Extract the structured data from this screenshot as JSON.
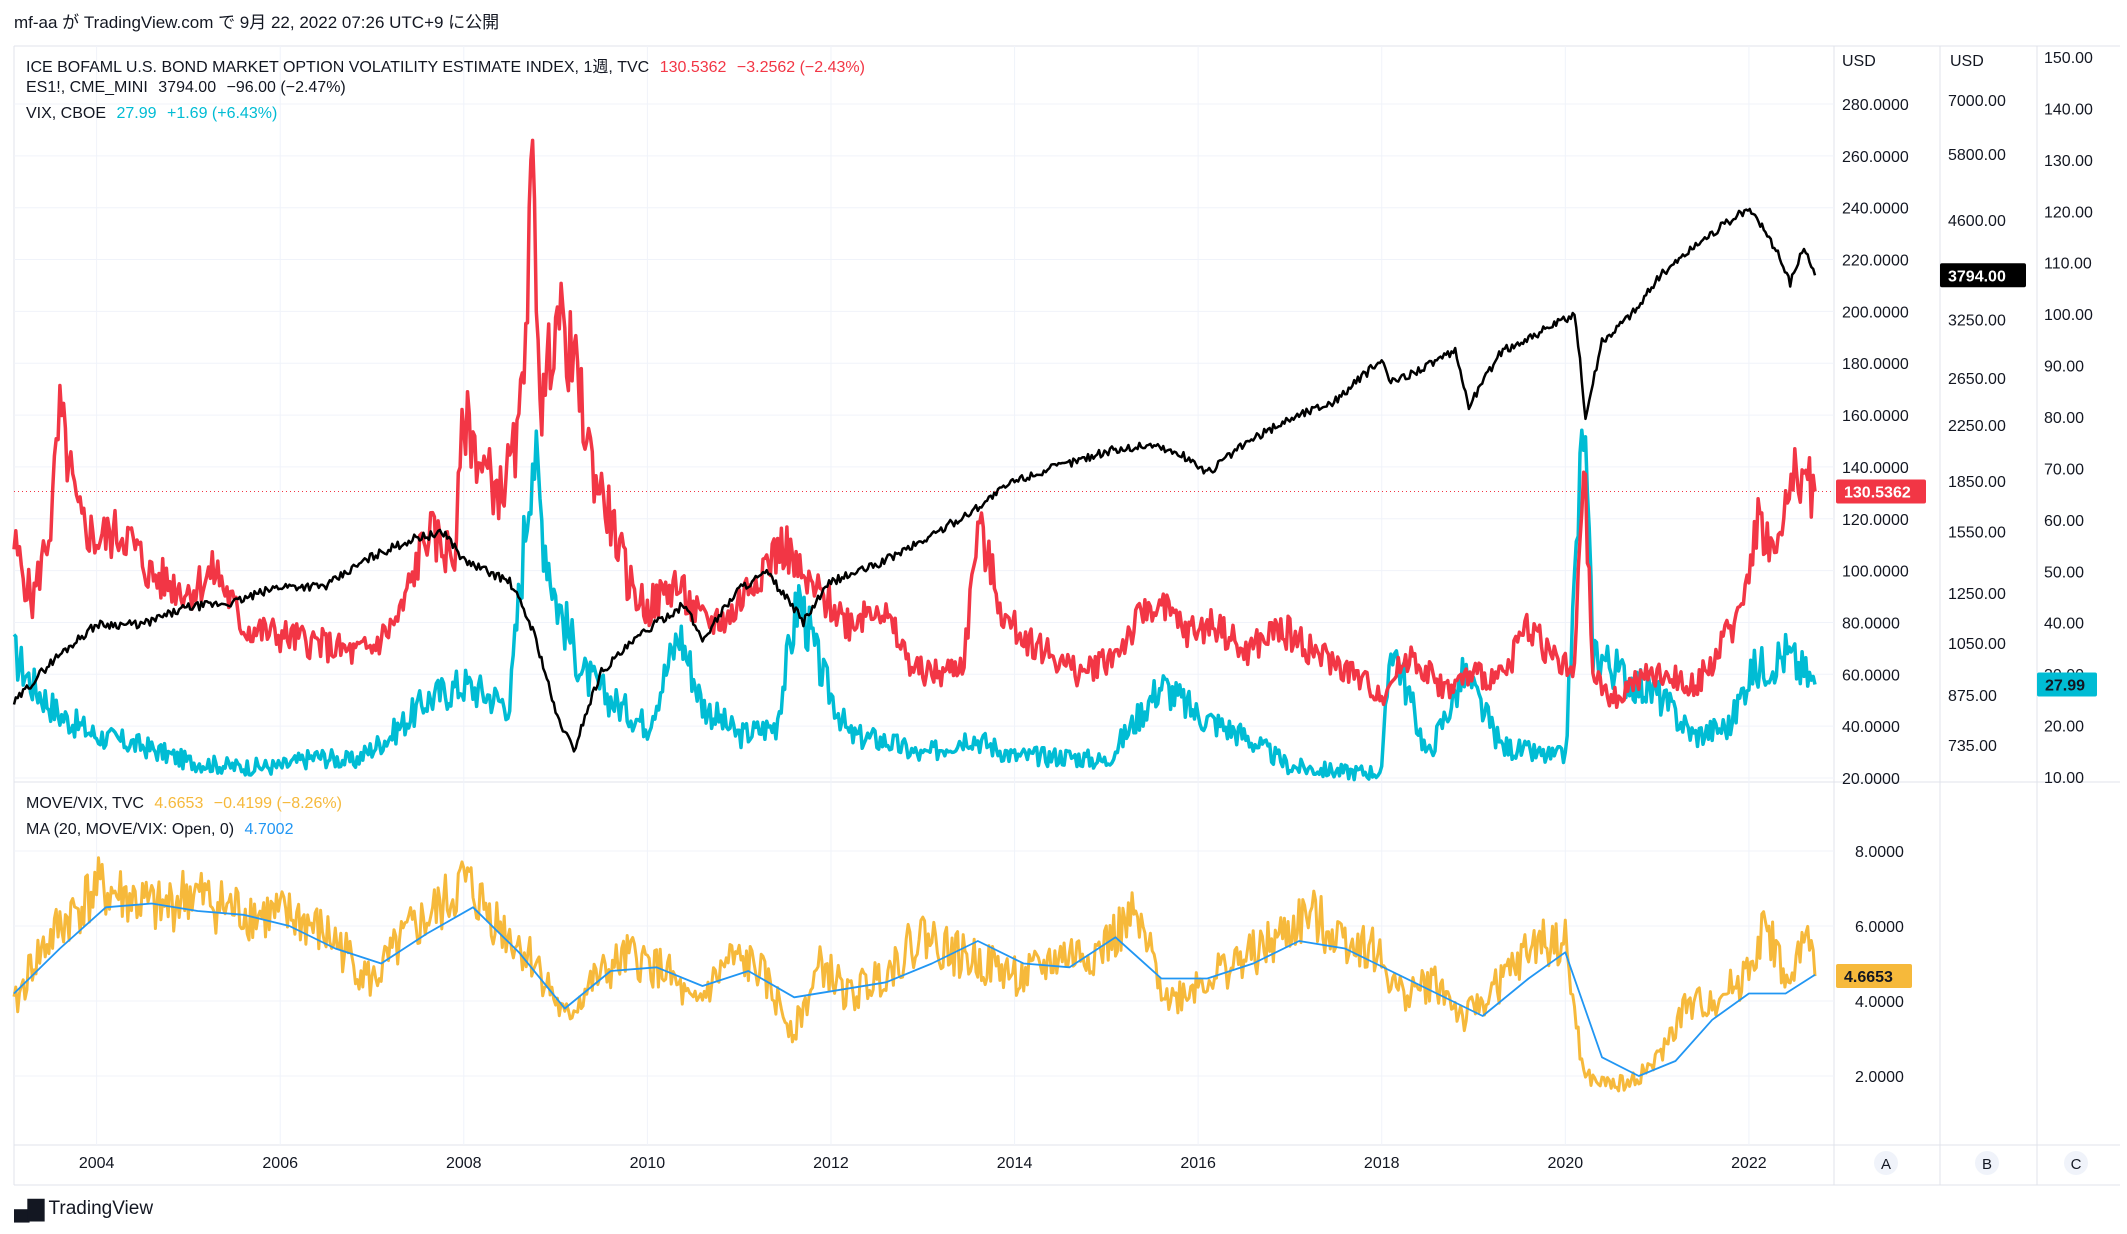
{
  "header": {
    "publish_line": "mf-aa が TradingView.com で 9月 22, 2022 07:26 UTC+9 に公開"
  },
  "footer": {
    "logo_icon": "tradingview-logo-icon",
    "brand": "TradingView"
  },
  "legend_top": [
    {
      "label": "ICE BOFAML U.S. BOND MARKET OPTION VOLATILITY ESTIMATE INDEX, 1週, TVC",
      "value": "130.5362",
      "change": "−3.2562 (−2.43%)",
      "color": "#f23645"
    },
    {
      "label": "ES1!, CME_MINI",
      "value": "3794.00",
      "change": "−96.00 (−2.47%)",
      "color": "#131722"
    },
    {
      "label": "VIX, CBOE",
      "value": "27.99",
      "change": "+1.69 (+6.43%)",
      "color": "#00bcd4"
    }
  ],
  "legend_bottom": [
    {
      "label": "MOVE/VIX, TVC",
      "value": "4.6653",
      "change": "−0.4199 (−8.26%)",
      "color": "#f6b93b"
    },
    {
      "label": "MA (20, MOVE/VIX: Open, 0)",
      "value": "4.7002",
      "change": "",
      "color": "#2196f3"
    }
  ],
  "axes": {
    "x_ticks": [
      "2004",
      "2006",
      "2008",
      "2010",
      "2012",
      "2014",
      "2016",
      "2018",
      "2020",
      "2022"
    ],
    "axis_A_title": "USD",
    "axis_A_ticks": [
      "280.0000",
      "260.0000",
      "240.0000",
      "220.0000",
      "200.0000",
      "180.0000",
      "160.0000",
      "140.0000",
      "120.0000",
      "100.0000",
      "80.0000",
      "60.0000",
      "40.0000",
      "20.0000"
    ],
    "axis_B_title": "USD",
    "axis_B_ticks": [
      "7000.00",
      "5800.00",
      "4600.00",
      "3250.00",
      "2650.00",
      "2250.00",
      "1850.00",
      "1550.00",
      "1250.00",
      "1050.00",
      "875.00",
      "735.00"
    ],
    "axis_C_ticks": [
      "150.00",
      "140.00",
      "130.00",
      "120.00",
      "110.00",
      "100.00",
      "90.00",
      "80.00",
      "70.00",
      "60.00",
      "50.00",
      "40.00",
      "30.00",
      "20.00",
      "10.00"
    ],
    "lower_ticks": [
      "8.0000",
      "6.0000",
      "4.0000",
      "2.0000"
    ],
    "scale_buttons": [
      "A",
      "B",
      "C"
    ]
  },
  "price_tags": {
    "move": "130.5362",
    "es": "3794.00",
    "vix": "27.99",
    "ratio": "4.6653"
  },
  "colors": {
    "move": "#f23645",
    "es": "#000000",
    "vix": "#00bcd4",
    "ratio": "#f6b93b",
    "ma": "#2196f3",
    "grid": "#f0f3fa",
    "axis_border": "#e0e3eb"
  },
  "chart_data": [
    {
      "type": "line",
      "title": "ICE BOFAML U.S. BOND MARKET OPTION VOLATILITY ESTIMATE INDEX, 1週, TVC",
      "x_range": [
        2003.1,
        2022.72
      ],
      "ylim": [
        20,
        290
      ],
      "series": [
        {
          "name": "ICE BOFAML U.S. BOND MARKET OPTION VOLATILITY ESTIMATE INDEX",
          "x": [
            2003.1,
            2003.3,
            2003.5,
            2003.6,
            2003.8,
            2004.0,
            2004.3,
            2004.6,
            2005.0,
            2005.3,
            2005.6,
            2006.0,
            2006.4,
            2006.8,
            2007.0,
            2007.3,
            2007.6,
            2007.9,
            2008.0,
            2008.2,
            2008.4,
            2008.6,
            2008.75,
            2008.85,
            2009.0,
            2009.2,
            2009.4,
            2009.6,
            2009.8,
            2010.0,
            2010.3,
            2010.6,
            2010.9,
            2011.2,
            2011.5,
            2011.7,
            2011.9,
            2012.2,
            2012.5,
            2012.9,
            2013.2,
            2013.45,
            2013.6,
            2013.9,
            2014.3,
            2014.7,
            2015.1,
            2015.5,
            2015.9,
            2016.2,
            2016.5,
            2016.9,
            2017.3,
            2017.7,
            2018.0,
            2018.3,
            2018.7,
            2019.0,
            2019.3,
            2019.6,
            2019.9,
            2020.1,
            2020.2,
            2020.3,
            2020.5,
            2020.8,
            2021.1,
            2021.4,
            2021.7,
            2021.9,
            2022.1,
            2022.3,
            2022.5,
            2022.72
          ],
          "y": [
            110,
            88,
            118,
            160,
            120,
            112,
            115,
            98,
            92,
            100,
            78,
            75,
            72,
            68,
            70,
            82,
            115,
            105,
            160,
            140,
            130,
            150,
            252,
            160,
            200,
            180,
            140,
            120,
            95,
            85,
            95,
            80,
            82,
            100,
            110,
            95,
            90,
            80,
            88,
            62,
            60,
            65,
            118,
            80,
            70,
            60,
            68,
            88,
            76,
            80,
            68,
            78,
            68,
            60,
            52,
            68,
            54,
            60,
            58,
            80,
            65,
            60,
            143,
            60,
            50,
            58,
            60,
            55,
            70,
            85,
            120,
            105,
            140,
            130.5362
          ]
        },
        {
          "name": "VIX",
          "axis": "C",
          "x": [
            2003.1,
            2003.3,
            2003.6,
            2004.0,
            2004.5,
            2005.0,
            2005.5,
            2006.0,
            2006.4,
            2006.8,
            2007.2,
            2007.6,
            2008.0,
            2008.5,
            2008.75,
            2008.85,
            2009.0,
            2009.3,
            2009.6,
            2010.0,
            2010.35,
            2010.6,
            2011.0,
            2011.4,
            2011.65,
            2011.9,
            2012.2,
            2012.6,
            2013.0,
            2013.5,
            2014.0,
            2014.6,
            2015.0,
            2015.6,
            2016.0,
            2016.5,
            2017.0,
            2017.6,
            2018.0,
            2018.1,
            2018.5,
            2018.9,
            2019.3,
            2019.8,
            2020.0,
            2020.2,
            2020.3,
            2020.6,
            2021.0,
            2021.4,
            2021.8,
            2022.0,
            2022.4,
            2022.72
          ],
          "y": [
            34,
            28,
            22,
            18,
            16,
            13,
            12,
            12,
            14,
            13,
            18,
            25,
            28,
            24,
            75,
            60,
            45,
            30,
            25,
            20,
            38,
            24,
            18,
            20,
            45,
            30,
            18,
            17,
            14,
            18,
            14,
            14,
            13,
            28,
            22,
            18,
            12,
            11,
            11,
            37,
            14,
            30,
            16,
            14,
            14,
            80,
            35,
            30,
            26,
            18,
            20,
            30,
            34,
            27.99
          ]
        },
        {
          "name": "ES1!",
          "axis": "B",
          "x": [
            2003.1,
            2003.5,
            2004.0,
            2004.5,
            2005.0,
            2005.5,
            2006.0,
            2006.5,
            2007.0,
            2007.5,
            2007.8,
            2008.0,
            2008.5,
            2008.75,
            2009.0,
            2009.2,
            2009.5,
            2010.0,
            2010.4,
            2010.6,
            2011.0,
            2011.3,
            2011.7,
            2012.0,
            2012.5,
            2013.0,
            2013.5,
            2014.0,
            2014.5,
            2015.0,
            2015.5,
            2015.9,
            2016.1,
            2016.5,
            2017.0,
            2017.5,
            2018.0,
            2018.1,
            2018.8,
            2018.95,
            2019.3,
            2019.9,
            2020.1,
            2020.22,
            2020.4,
            2020.8,
            2021.0,
            2021.5,
            2021.99,
            2022.2,
            2022.45,
            2022.6,
            2022.72
          ],
          "y": [
            850,
            980,
            1120,
            1120,
            1190,
            1210,
            1280,
            1280,
            1420,
            1520,
            1540,
            1400,
            1300,
            1100,
            820,
            720,
            950,
            1100,
            1200,
            1060,
            1270,
            1340,
            1130,
            1300,
            1380,
            1500,
            1650,
            1850,
            1950,
            2050,
            2100,
            2000,
            1900,
            2100,
            2300,
            2450,
            2820,
            2600,
            2900,
            2400,
            2900,
            3200,
            3300,
            2300,
            3000,
            3400,
            3750,
            4300,
            4780,
            4400,
            3700,
            4200,
            3794
          ]
        }
      ]
    },
    {
      "type": "line",
      "title": "MOVE/VIX, TVC",
      "x_range": [
        2003.1,
        2022.72
      ],
      "ylim": [
        0,
        9
      ],
      "series": [
        {
          "name": "MOVE/VIX",
          "x": [
            2003.1,
            2003.3,
            2003.6,
            2004.0,
            2004.3,
            2004.7,
            2005.0,
            2005.4,
            2005.8,
            2006.2,
            2006.6,
            2007.0,
            2007.4,
            2007.8,
            2008.0,
            2008.4,
            2008.8,
            2009.1,
            2009.4,
            2009.8,
            2010.2,
            2010.5,
            2010.9,
            2011.2,
            2011.6,
            2011.9,
            2012.2,
            2012.6,
            2013.0,
            2013.4,
            2013.7,
            2014.1,
            2014.5,
            2014.9,
            2015.3,
            2015.7,
            2016.0,
            2016.4,
            2016.8,
            2017.2,
            2017.5,
            2017.9,
            2018.2,
            2018.6,
            2018.9,
            2019.3,
            2019.7,
            2020.0,
            2020.2,
            2020.4,
            2020.7,
            2021.0,
            2021.3,
            2021.6,
            2021.9,
            2022.2,
            2022.45,
            2022.6,
            2022.72
          ],
          "y": [
            3.8,
            5.0,
            6.0,
            7.0,
            6.8,
            6.4,
            6.9,
            6.5,
            6.3,
            6.2,
            5.6,
            4.5,
            5.8,
            6.6,
            7.2,
            6.0,
            5.0,
            3.5,
            4.5,
            5.2,
            4.8,
            3.8,
            5.1,
            4.9,
            3.2,
            5.0,
            4.1,
            4.8,
            5.8,
            5.2,
            5.0,
            4.6,
            5.2,
            5.3,
            6.2,
            4.0,
            4.5,
            5.0,
            5.5,
            6.3,
            5.8,
            5.4,
            4.2,
            4.5,
            3.5,
            4.5,
            5.6,
            5.5,
            2.0,
            1.8,
            1.8,
            2.4,
            3.8,
            4.0,
            4.5,
            6.0,
            4.2,
            5.8,
            4.6653
          ]
        },
        {
          "name": "MA (20, MOVE/VIX: Open, 0)",
          "x": [
            2003.1,
            2003.6,
            2004.1,
            2004.6,
            2005.1,
            2005.6,
            2006.1,
            2006.6,
            2007.1,
            2007.6,
            2008.1,
            2008.6,
            2009.1,
            2009.6,
            2010.1,
            2010.6,
            2011.1,
            2011.6,
            2012.1,
            2012.6,
            2013.1,
            2013.6,
            2014.1,
            2014.6,
            2015.1,
            2015.6,
            2016.1,
            2016.6,
            2017.1,
            2017.6,
            2018.1,
            2018.6,
            2019.1,
            2019.6,
            2020.0,
            2020.4,
            2020.8,
            2021.2,
            2021.6,
            2022.0,
            2022.4,
            2022.72
          ],
          "y": [
            4.2,
            5.4,
            6.5,
            6.6,
            6.4,
            6.3,
            6.0,
            5.4,
            5.0,
            5.8,
            6.5,
            5.3,
            3.8,
            4.8,
            4.9,
            4.4,
            4.8,
            4.1,
            4.3,
            4.5,
            5.0,
            5.6,
            5.0,
            4.9,
            5.7,
            4.6,
            4.6,
            5.0,
            5.6,
            5.4,
            4.8,
            4.2,
            3.6,
            4.6,
            5.3,
            2.5,
            2.0,
            2.4,
            3.5,
            4.2,
            4.2,
            4.7002
          ]
        }
      ]
    }
  ]
}
